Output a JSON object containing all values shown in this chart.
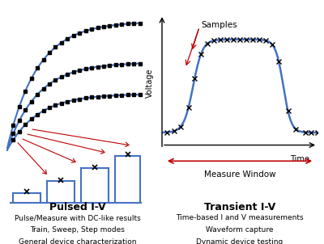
{
  "background_color": "#ffffff",
  "left_panel_bg": "#eeeeee",
  "blue_color": "#4472c4",
  "red_color": "#c00000",
  "black_color": "#000000",
  "title_left": "Pulsed I-V",
  "desc_left": [
    "Pulse/Measure with DC-like results",
    "Train, Sweep, Step modes",
    "General device characterization"
  ],
  "title_right": "Transient I-V",
  "desc_right": [
    "Time-based I and V measurements",
    "Waveform capture",
    "Dynamic device testing"
  ],
  "samples_label": "Samples",
  "voltage_label": "Voltage",
  "time_label": "Time",
  "measure_window_label": "Measure Window"
}
